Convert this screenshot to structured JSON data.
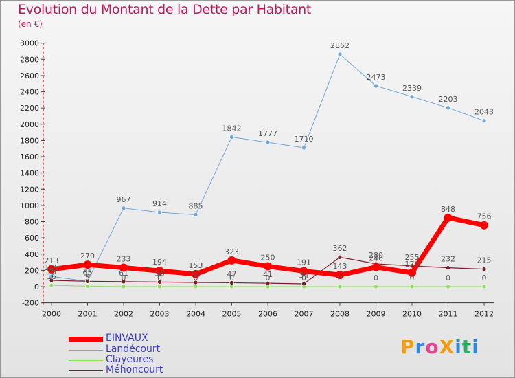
{
  "title": "Evolution du Montant de la Dette par Habitant",
  "unit": "(en €)",
  "logo": "ProXiti",
  "chart_data": {
    "type": "line",
    "x": [
      "2000",
      "2001",
      "2002",
      "2003",
      "2004",
      "2005",
      "2006",
      "2007",
      "2008",
      "2009",
      "2010",
      "2011",
      "2012"
    ],
    "ylim": [
      -200,
      3000
    ],
    "yticks": [
      -200,
      0,
      200,
      400,
      600,
      800,
      1000,
      1200,
      1400,
      1600,
      1800,
      2000,
      2200,
      2400,
      2600,
      2800,
      3000
    ],
    "grid": false,
    "legend_position": "bottom-left",
    "series": [
      {
        "name": "EINVAUX",
        "color": "#ff0000",
        "values": [
          213,
          270,
          233,
          194,
          153,
          323,
          250,
          191,
          143,
          240,
          170,
          848,
          756
        ]
      },
      {
        "name": "Landécourt",
        "color": "#6fa8dc",
        "values": [
          126,
          65,
          967,
          914,
          885,
          1842,
          1777,
          1710,
          2862,
          2473,
          2339,
          2203,
          2043
        ]
      },
      {
        "name": "Clayeures",
        "color": "#8fdc5a",
        "values": [
          16,
          5,
          0,
          0,
          0,
          0,
          0,
          0,
          0,
          0,
          0,
          0,
          0
        ]
      },
      {
        "name": "Méhoncourt",
        "color": "#7a1f2b",
        "values": [
          76,
          65,
          61,
          56,
          51,
          47,
          41,
          34,
          362,
          280,
          255,
          232,
          215
        ]
      }
    ]
  }
}
